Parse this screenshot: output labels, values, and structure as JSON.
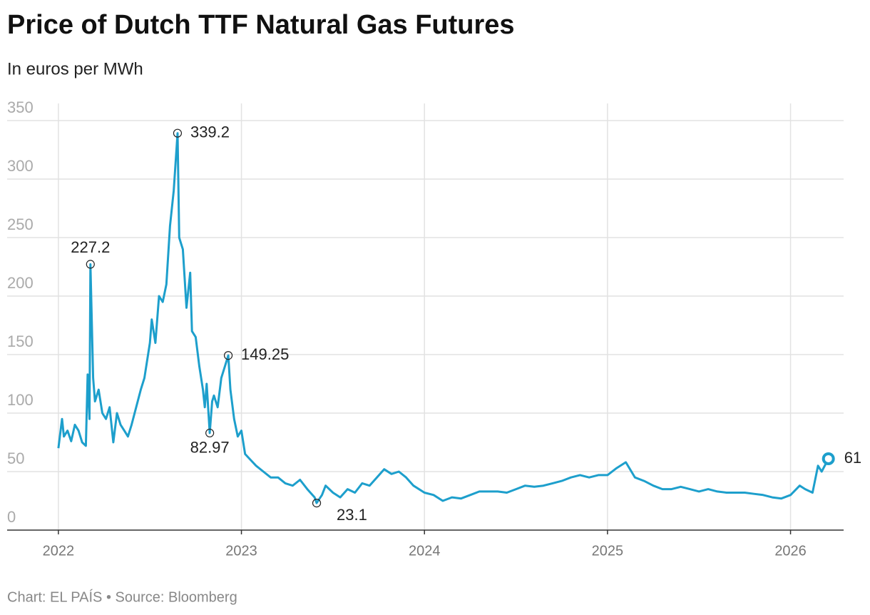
{
  "chart_data": {
    "type": "line",
    "title": "Price of Dutch TTF Natural Gas Futures",
    "subtitle": "In euros per MWh",
    "footer": "Chart: EL PAÍS • Source: Bloomberg",
    "xlim": [
      2021.72,
      2026.29
    ],
    "xticks": [
      2022,
      2023,
      2024,
      2025,
      2026
    ],
    "ylim": [
      0,
      350
    ],
    "yticks": [
      0,
      50,
      100,
      150,
      200,
      250,
      300,
      350
    ],
    "grid": true,
    "series": [
      {
        "name": "TTF",
        "color": "#1d9fcc",
        "x": [
          2022.0,
          2022.02,
          2022.03,
          2022.05,
          2022.07,
          2022.09,
          2022.11,
          2022.13,
          2022.15,
          2022.16,
          2022.17,
          2022.175,
          2022.19,
          2022.2,
          2022.22,
          2022.24,
          2022.26,
          2022.28,
          2022.3,
          2022.32,
          2022.34,
          2022.36,
          2022.38,
          2022.4,
          2022.45,
          2022.47,
          2022.5,
          2022.51,
          2022.53,
          2022.55,
          2022.57,
          2022.59,
          2022.61,
          2022.63,
          2022.651,
          2022.66,
          2022.68,
          2022.7,
          2022.72,
          2022.73,
          2022.75,
          2022.77,
          2022.79,
          2022.8,
          2022.81,
          2022.827,
          2022.84,
          2022.85,
          2022.87,
          2022.89,
          2022.91,
          2022.928,
          2022.94,
          2022.96,
          2022.98,
          2023.0,
          2023.02,
          2023.05,
          2023.08,
          2023.12,
          2023.16,
          2023.2,
          2023.24,
          2023.28,
          2023.32,
          2023.36,
          2023.4,
          2023.411,
          2023.44,
          2023.46,
          2023.5,
          2023.54,
          2023.58,
          2023.62,
          2023.66,
          2023.7,
          2023.74,
          2023.78,
          2023.82,
          2023.86,
          2023.9,
          2023.94,
          2024.0,
          2024.05,
          2024.1,
          2024.15,
          2024.2,
          2024.25,
          2024.3,
          2024.35,
          2024.4,
          2024.45,
          2024.5,
          2024.55,
          2024.6,
          2024.65,
          2024.7,
          2024.75,
          2024.8,
          2024.85,
          2024.9,
          2024.95,
          2025.0,
          2025.05,
          2025.1,
          2025.15,
          2025.2,
          2025.25,
          2025.3,
          2025.35,
          2025.4,
          2025.45,
          2025.5,
          2025.55,
          2025.6,
          2025.65,
          2025.7,
          2025.75,
          2025.8,
          2025.85,
          2025.9,
          2025.95,
          2026.0,
          2026.05,
          2026.08,
          2026.12,
          2026.15,
          2026.17,
          2026.207
        ],
        "values": [
          70,
          95,
          80,
          85,
          76,
          90,
          85,
          75,
          72,
          133,
          95,
          227.2,
          130,
          110,
          120,
          100,
          95,
          105,
          75,
          100,
          90,
          85,
          80,
          90,
          120,
          130,
          160,
          180,
          160,
          200,
          195,
          210,
          260,
          290,
          339.2,
          250,
          240,
          190,
          220,
          170,
          165,
          140,
          120,
          105,
          125,
          82.97,
          110,
          115,
          105,
          130,
          140,
          149.25,
          120,
          95,
          80,
          85,
          65,
          60,
          55,
          50,
          45,
          45,
          40,
          38,
          43,
          35,
          28,
          23.1,
          30,
          38,
          32,
          28,
          35,
          32,
          40,
          38,
          45,
          52,
          48,
          50,
          45,
          38,
          32,
          30,
          25,
          28,
          27,
          30,
          33,
          33,
          33,
          32,
          35,
          38,
          37,
          38,
          40,
          42,
          45,
          47,
          45,
          47,
          47,
          53,
          58,
          45,
          42,
          38,
          35,
          35,
          37,
          35,
          33,
          35,
          33,
          32,
          32,
          32,
          31,
          30,
          28,
          27,
          30,
          38,
          35,
          32,
          55,
          50,
          61
        ]
      }
    ],
    "annotations": [
      {
        "x": 2022.175,
        "y": 227.2
      },
      {
        "x": 2022.651,
        "y": 339.2
      },
      {
        "x": 2022.928,
        "y": 149.25
      },
      {
        "x": 2022.827,
        "y": 82.97
      },
      {
        "x": 2023.411,
        "y": 23.1
      },
      {
        "x": 2026.207,
        "y": 61
      }
    ]
  }
}
